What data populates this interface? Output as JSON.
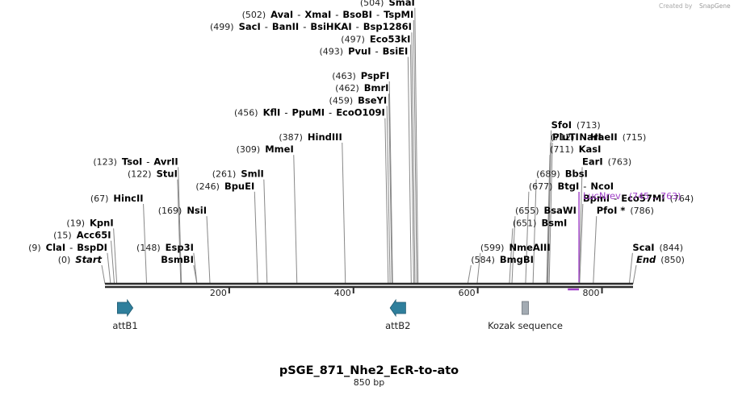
{
  "branding": {
    "created_by": "Created by",
    "brand": "SnapGene"
  },
  "plasmid": {
    "name": "pSGE_871_Nhe2_EcR-to-ato",
    "length_label": "850 bp",
    "length_bp": 850
  },
  "colors": {
    "backbone": "#2b2b2b",
    "site_line": "#888888",
    "primer": "#a040c8",
    "feature_arrow": "#2f7f9c",
    "kozak": "#a3abb3"
  },
  "axis": {
    "ticks": [
      {
        "bp": 200,
        "label": "200"
      },
      {
        "bp": 400,
        "label": "400"
      },
      {
        "bp": 600,
        "label": "600"
      },
      {
        "bp": 800,
        "label": "800"
      }
    ]
  },
  "sites": [
    {
      "bp": 0,
      "row": 0,
      "parts": [
        {
          "text": "(0)",
          "kind": "pos"
        },
        {
          "text": "Start",
          "kind": "ital"
        }
      ]
    },
    {
      "bp": 9,
      "row": 1,
      "parts": [
        {
          "text": "(9)",
          "kind": "pos"
        },
        {
          "text": "ClaI",
          "kind": "enz"
        },
        {
          "text": "-",
          "kind": "sep"
        },
        {
          "text": "BspDI",
          "kind": "enz"
        }
      ]
    },
    {
      "bp": 15,
      "row": 2,
      "parts": [
        {
          "text": "(15)",
          "kind": "pos"
        },
        {
          "text": "Acc65I",
          "kind": "enz"
        }
      ]
    },
    {
      "bp": 19,
      "row": 3,
      "parts": [
        {
          "text": "(19)",
          "kind": "pos"
        },
        {
          "text": "KpnI",
          "kind": "enz"
        }
      ]
    },
    {
      "bp": 67,
      "row": 5,
      "parts": [
        {
          "text": "(67)",
          "kind": "pos"
        },
        {
          "text": "HincII",
          "kind": "enz"
        }
      ]
    },
    {
      "bp": 122,
      "row": 7,
      "parts": [
        {
          "text": "(122)",
          "kind": "pos"
        },
        {
          "text": "StuI",
          "kind": "enz"
        }
      ]
    },
    {
      "bp": 123,
      "row": 8,
      "parts": [
        {
          "text": "(123)",
          "kind": "pos"
        },
        {
          "text": "TsoI",
          "kind": "enz"
        },
        {
          "text": "-",
          "kind": "sep"
        },
        {
          "text": "AvrII",
          "kind": "enz"
        }
      ]
    },
    {
      "bp": 148,
      "row": 0,
      "parts": [
        {
          "text": "BsmBI",
          "kind": "enz"
        }
      ]
    },
    {
      "bp": 148,
      "row": 1,
      "parts": [
        {
          "text": "(148)",
          "kind": "pos"
        },
        {
          "text": "Esp3I",
          "kind": "enz"
        }
      ]
    },
    {
      "bp": 169,
      "row": 4,
      "parts": [
        {
          "text": "(169)",
          "kind": "pos"
        },
        {
          "text": "NsiI",
          "kind": "enz"
        }
      ]
    },
    {
      "bp": 246,
      "row": 6,
      "parts": [
        {
          "text": "(246)",
          "kind": "pos"
        },
        {
          "text": "BpuEI",
          "kind": "enz"
        }
      ]
    },
    {
      "bp": 261,
      "row": 7,
      "parts": [
        {
          "text": "(261)",
          "kind": "pos"
        },
        {
          "text": "SmlI",
          "kind": "enz"
        }
      ]
    },
    {
      "bp": 309,
      "row": 9,
      "parts": [
        {
          "text": "(309)",
          "kind": "pos"
        },
        {
          "text": "MmeI",
          "kind": "enz"
        }
      ]
    },
    {
      "bp": 387,
      "row": 10,
      "parts": [
        {
          "text": "(387)",
          "kind": "pos"
        },
        {
          "text": "HindIII",
          "kind": "enz"
        }
      ]
    },
    {
      "bp": 456,
      "row": 12,
      "parts": [
        {
          "text": "(456)",
          "kind": "pos"
        },
        {
          "text": "KflI",
          "kind": "enz"
        },
        {
          "text": "-",
          "kind": "sep"
        },
        {
          "text": "PpuMI",
          "kind": "enz"
        },
        {
          "text": "-",
          "kind": "sep"
        },
        {
          "text": "EcoO109I",
          "kind": "enz"
        }
      ]
    },
    {
      "bp": 459,
      "row": 13,
      "parts": [
        {
          "text": "(459)",
          "kind": "pos"
        },
        {
          "text": "BseYI",
          "kind": "enz"
        }
      ]
    },
    {
      "bp": 462,
      "row": 14,
      "parts": [
        {
          "text": "(462)",
          "kind": "pos"
        },
        {
          "text": "BmrI",
          "kind": "enz"
        }
      ]
    },
    {
      "bp": 463,
      "row": 15,
      "parts": [
        {
          "text": "(463)",
          "kind": "pos"
        },
        {
          "text": "PspFI",
          "kind": "enz"
        }
      ]
    },
    {
      "bp": 493,
      "row": 17,
      "parts": [
        {
          "text": "(493)",
          "kind": "pos"
        },
        {
          "text": "PvuI",
          "kind": "enz"
        },
        {
          "text": "-",
          "kind": "sep"
        },
        {
          "text": "BsiEI",
          "kind": "enz"
        }
      ]
    },
    {
      "bp": 497,
      "row": 18,
      "parts": [
        {
          "text": "(497)",
          "kind": "pos"
        },
        {
          "text": "Eco53kI",
          "kind": "enz"
        }
      ]
    },
    {
      "bp": 499,
      "row": 19,
      "parts": [
        {
          "text": "(499)",
          "kind": "pos"
        },
        {
          "text": "SacI",
          "kind": "enz"
        },
        {
          "text": "-",
          "kind": "sep"
        },
        {
          "text": "BanII",
          "kind": "enz"
        },
        {
          "text": "-",
          "kind": "sep"
        },
        {
          "text": "BsiHKAI",
          "kind": "enz"
        },
        {
          "text": "-",
          "kind": "sep"
        },
        {
          "text": "Bsp1286I",
          "kind": "enz"
        }
      ]
    },
    {
      "bp": 502,
      "row": 20,
      "parts": [
        {
          "text": "(502)",
          "kind": "pos"
        },
        {
          "text": "AvaI",
          "kind": "enz"
        },
        {
          "text": "-",
          "kind": "sep"
        },
        {
          "text": "XmaI",
          "kind": "enz"
        },
        {
          "text": "-",
          "kind": "sep"
        },
        {
          "text": "BsoBI",
          "kind": "enz"
        },
        {
          "text": "-",
          "kind": "sep"
        },
        {
          "text": "TspMI",
          "kind": "enz"
        }
      ]
    },
    {
      "bp": 504,
      "row": 21,
      "parts": [
        {
          "text": "(504)",
          "kind": "pos"
        },
        {
          "text": "SmaI",
          "kind": "enz"
        }
      ]
    },
    {
      "bp": 584,
      "row": 0,
      "parts": [
        {
          "text": "(584)",
          "kind": "pos"
        },
        {
          "text": "BmgBI",
          "kind": "enz"
        }
      ]
    },
    {
      "bp": 599,
      "row": 1,
      "parts": [
        {
          "text": "(599)",
          "kind": "pos"
        },
        {
          "text": "NmeAIII",
          "kind": "enz"
        }
      ]
    },
    {
      "bp": 651,
      "row": 3,
      "parts": [
        {
          "text": "(651)",
          "kind": "pos"
        },
        {
          "text": "BsmI",
          "kind": "enz"
        }
      ]
    },
    {
      "bp": 655,
      "row": 4,
      "parts": [
        {
          "text": "(655)",
          "kind": "pos"
        },
        {
          "text": "BsaWI",
          "kind": "enz"
        }
      ]
    },
    {
      "bp": 677,
      "row": 6,
      "parts": [
        {
          "text": "(677)",
          "kind": "pos"
        },
        {
          "text": "BtgI",
          "kind": "enz"
        },
        {
          "text": "-",
          "kind": "sep"
        },
        {
          "text": "NcoI",
          "kind": "enz"
        }
      ]
    },
    {
      "bp": 689,
      "row": 7,
      "parts": [
        {
          "text": "(689)",
          "kind": "pos"
        },
        {
          "text": "BbsI",
          "kind": "enz"
        }
      ]
    },
    {
      "bp": 711,
      "row": 9,
      "parts": [
        {
          "text": "(711)",
          "kind": "pos"
        },
        {
          "text": "KasI",
          "kind": "enz"
        }
      ]
    },
    {
      "bp": 712,
      "row": 10,
      "parts": [
        {
          "text": "(712)",
          "kind": "pos"
        },
        {
          "text": "NarI",
          "kind": "enz"
        }
      ]
    },
    {
      "bp": 713,
      "row": 11,
      "parts": [
        {
          "text": "SfoI",
          "kind": "enz"
        },
        {
          "text": "(713)",
          "kind": "pos"
        }
      ]
    },
    {
      "bp": 715,
      "row": 10,
      "parts": [
        {
          "text": "PluTI",
          "kind": "enz"
        },
        {
          "text": "-",
          "kind": "sep"
        },
        {
          "text": "HaeII",
          "kind": "enz"
        },
        {
          "text": "(715)",
          "kind": "pos"
        }
      ]
    },
    {
      "bp": 763,
      "row": 8,
      "parts": [
        {
          "text": "EarI",
          "kind": "enz"
        },
        {
          "text": "(763)",
          "kind": "pos"
        }
      ]
    },
    {
      "bp": 764,
      "row": 5,
      "parts": [
        {
          "text": "BpmI",
          "kind": "enz"
        },
        {
          "text": "-",
          "kind": "sep"
        },
        {
          "text": "Eco57MI",
          "kind": "enz"
        },
        {
          "text": "(764)",
          "kind": "pos"
        }
      ]
    },
    {
      "bp": 786,
      "row": 4,
      "parts": [
        {
          "text": "PfoI *",
          "kind": "enz"
        },
        {
          "text": "(786)",
          "kind": "pos"
        }
      ]
    },
    {
      "bp": 844,
      "row": 1,
      "parts": [
        {
          "text": "ScaI",
          "kind": "enz"
        },
        {
          "text": "(844)",
          "kind": "pos"
        }
      ]
    },
    {
      "bp": 850,
      "row": 0,
      "parts": [
        {
          "text": "End",
          "kind": "ital"
        },
        {
          "text": "(850)",
          "kind": "pos"
        }
      ]
    }
  ],
  "primers": [
    {
      "name": "LucNrev",
      "range": "(745 .. 763)",
      "start": 745,
      "end": 763,
      "direction": "reverse"
    }
  ],
  "features": [
    {
      "name": "attB1",
      "start": 20,
      "end": 45,
      "shape": "arrow-right"
    },
    {
      "name": "attB2",
      "start": 459,
      "end": 484,
      "shape": "arrow-left"
    },
    {
      "name": "Kozak sequence",
      "start": 671,
      "end": 682,
      "shape": "box"
    }
  ]
}
